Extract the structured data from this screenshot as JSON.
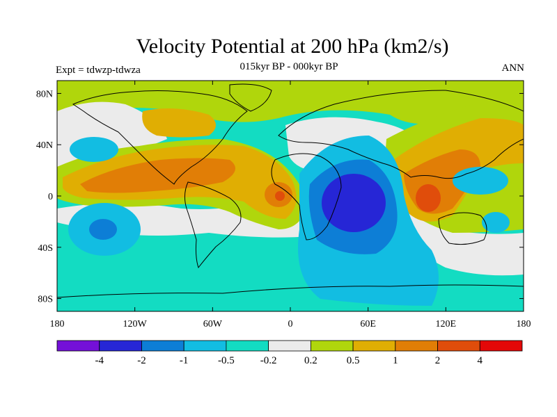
{
  "title": "Velocity Potential at 200 hPa (km2/s)",
  "subtitle": "015kyr BP - 000kyr BP",
  "left_label": "Expt = tdwzp-tdwza",
  "right_label": "ANN",
  "x_ticks": [
    {
      "lon": -180,
      "label": "180"
    },
    {
      "lon": -120,
      "label": "120W"
    },
    {
      "lon": -60,
      "label": "60W"
    },
    {
      "lon": 0,
      "label": "0"
    },
    {
      "lon": 60,
      "label": "60E"
    },
    {
      "lon": 120,
      "label": "120E"
    },
    {
      "lon": 180,
      "label": "180"
    }
  ],
  "y_ticks": [
    {
      "lat": 80,
      "label": "80N"
    },
    {
      "lat": 40,
      "label": "40N"
    },
    {
      "lat": 0,
      "label": "0"
    },
    {
      "lat": -40,
      "label": "40S"
    },
    {
      "lat": -80,
      "label": "80S"
    }
  ],
  "colorbar": {
    "colors": [
      "#7410d8",
      "#2626d6",
      "#0d7ed6",
      "#12bde2",
      "#13dcc2",
      "#ebebeb",
      "#b0d60c",
      "#e0ae03",
      "#e17e06",
      "#e04d0b",
      "#e30808"
    ],
    "labels": [
      "-4",
      "-2",
      "-1",
      "-0.5",
      "-0.2",
      "0.2",
      "0.5",
      "1",
      "2",
      "4"
    ]
  },
  "colors": {
    "ocean_base": "#13dcc2",
    "continent_line": "#000000"
  }
}
